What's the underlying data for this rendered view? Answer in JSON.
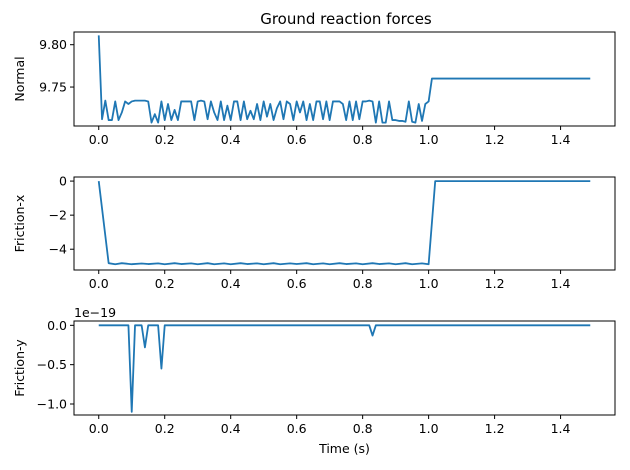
{
  "figure": {
    "title": "Ground reaction forces",
    "line_color": "#1f77b4"
  },
  "chart_data": [
    {
      "type": "line",
      "title": "Ground reaction forces",
      "ylabel": "Normal",
      "xlabel": "",
      "xlim": [
        -0.075,
        1.565
      ],
      "ylim": [
        9.704,
        9.815
      ],
      "x_ticks": [
        0.0,
        0.2,
        0.4,
        0.6,
        0.8,
        1.0,
        1.2,
        1.4
      ],
      "x_tick_labels": [
        "0.0",
        "0.2",
        "0.4",
        "0.6",
        "0.8",
        "1.0",
        "1.2",
        "1.4"
      ],
      "y_ticks": [
        9.75,
        9.8
      ],
      "y_tick_labels": [
        "9.75",
        "9.80"
      ],
      "offset_label": "",
      "grid": false,
      "series": [
        {
          "x": [
            0.0,
            0.01,
            0.02,
            0.03,
            0.04,
            0.05,
            0.06,
            0.07,
            0.08,
            0.09,
            0.1,
            0.11,
            0.12,
            0.13,
            0.14,
            0.15,
            0.16,
            0.17,
            0.18,
            0.19,
            0.2,
            0.21,
            0.22,
            0.23,
            0.24,
            0.25,
            0.26,
            0.27,
            0.28,
            0.29,
            0.3,
            0.31,
            0.32,
            0.33,
            0.34,
            0.35,
            0.36,
            0.37,
            0.38,
            0.39,
            0.4,
            0.41,
            0.42,
            0.43,
            0.44,
            0.45,
            0.46,
            0.47,
            0.48,
            0.49,
            0.5,
            0.51,
            0.52,
            0.53,
            0.54,
            0.55,
            0.56,
            0.57,
            0.58,
            0.59,
            0.6,
            0.61,
            0.62,
            0.63,
            0.64,
            0.65,
            0.66,
            0.67,
            0.68,
            0.69,
            0.7,
            0.71,
            0.72,
            0.73,
            0.74,
            0.75,
            0.76,
            0.77,
            0.78,
            0.79,
            0.8,
            0.81,
            0.82,
            0.83,
            0.84,
            0.85,
            0.86,
            0.87,
            0.88,
            0.89,
            0.9,
            0.91,
            0.92,
            0.93,
            0.94,
            0.95,
            0.96,
            0.97,
            0.98,
            0.99,
            1.0,
            1.01,
            1.02,
            1.03,
            1.1,
            1.2,
            1.3,
            1.4,
            1.49
          ],
          "y": [
            9.811,
            9.712,
            9.734,
            9.711,
            9.711,
            9.733,
            9.711,
            9.72,
            9.733,
            9.73,
            9.733,
            9.734,
            9.734,
            9.734,
            9.734,
            9.733,
            9.708,
            9.718,
            9.708,
            9.733,
            9.711,
            9.73,
            9.711,
            9.723,
            9.711,
            9.733,
            9.733,
            9.733,
            9.733,
            9.711,
            9.733,
            9.734,
            9.733,
            9.712,
            9.733,
            9.72,
            9.711,
            9.733,
            9.711,
            9.728,
            9.711,
            9.733,
            9.733,
            9.711,
            9.733,
            9.712,
            9.722,
            9.712,
            9.73,
            9.711,
            9.733,
            9.715,
            9.73,
            9.711,
            9.725,
            9.733,
            9.712,
            9.733,
            9.73,
            9.711,
            9.733,
            9.72,
            9.733,
            9.711,
            9.73,
            9.711,
            9.733,
            9.733,
            9.712,
            9.733,
            9.711,
            9.733,
            9.733,
            9.733,
            9.73,
            9.711,
            9.733,
            9.711,
            9.733,
            9.712,
            9.733,
            9.733,
            9.734,
            9.733,
            9.708,
            9.733,
            9.708,
            9.708,
            9.733,
            9.711,
            9.711,
            9.71,
            9.71,
            9.709,
            9.733,
            9.709,
            9.708,
            9.73,
            9.71,
            9.73,
            9.733,
            9.76,
            9.76,
            9.76,
            9.76,
            9.76,
            9.76,
            9.76,
            9.76
          ]
        }
      ]
    },
    {
      "type": "line",
      "title": "",
      "ylabel": "Friction-x",
      "xlabel": "",
      "xlim": [
        -0.075,
        1.565
      ],
      "ylim": [
        -5.22,
        0.24
      ],
      "x_ticks": [
        0.0,
        0.2,
        0.4,
        0.6,
        0.8,
        1.0,
        1.2,
        1.4
      ],
      "x_tick_labels": [
        "0.0",
        "0.2",
        "0.4",
        "0.6",
        "0.8",
        "1.0",
        "1.2",
        "1.4"
      ],
      "y_ticks": [
        -4,
        -2,
        0
      ],
      "y_tick_labels": [
        "−4",
        "−2",
        "0"
      ],
      "offset_label": "",
      "grid": false,
      "series": [
        {
          "x": [
            0.0,
            0.03,
            0.05,
            0.07,
            0.1,
            0.13,
            0.15,
            0.18,
            0.2,
            0.23,
            0.25,
            0.28,
            0.3,
            0.33,
            0.35,
            0.38,
            0.4,
            0.43,
            0.45,
            0.48,
            0.5,
            0.53,
            0.55,
            0.58,
            0.6,
            0.63,
            0.65,
            0.68,
            0.7,
            0.73,
            0.75,
            0.78,
            0.8,
            0.83,
            0.85,
            0.88,
            0.9,
            0.93,
            0.95,
            0.98,
            1.0,
            1.02,
            1.1,
            1.2,
            1.3,
            1.4,
            1.49
          ],
          "y": [
            0.0,
            -4.82,
            -4.88,
            -4.82,
            -4.88,
            -4.84,
            -4.87,
            -4.83,
            -4.88,
            -4.82,
            -4.87,
            -4.83,
            -4.88,
            -4.82,
            -4.88,
            -4.83,
            -4.88,
            -4.82,
            -4.87,
            -4.83,
            -4.88,
            -4.82,
            -4.88,
            -4.83,
            -4.87,
            -4.82,
            -4.88,
            -4.83,
            -4.88,
            -4.82,
            -4.87,
            -4.83,
            -4.88,
            -4.82,
            -4.87,
            -4.83,
            -4.88,
            -4.82,
            -4.88,
            -4.83,
            -4.88,
            0.0,
            0.0,
            0.0,
            0.0,
            0.0,
            0.0
          ]
        }
      ]
    },
    {
      "type": "line",
      "title": "",
      "ylabel": "Friction-y",
      "xlabel": "Time (s)",
      "xlim": [
        -0.075,
        1.565
      ],
      "ylim": [
        -1.14,
        0.055
      ],
      "x_ticks": [
        0.0,
        0.2,
        0.4,
        0.6,
        0.8,
        1.0,
        1.2,
        1.4
      ],
      "x_tick_labels": [
        "0.0",
        "0.2",
        "0.4",
        "0.6",
        "0.8",
        "1.0",
        "1.2",
        "1.4"
      ],
      "y_ticks": [
        -1.0,
        -0.5,
        0.0
      ],
      "y_tick_labels": [
        "−1.0",
        "−0.5",
        "0.0"
      ],
      "offset_label": "1e−19",
      "grid": false,
      "series": [
        {
          "x": [
            0.0,
            0.08,
            0.09,
            0.1,
            0.11,
            0.12,
            0.13,
            0.14,
            0.15,
            0.16,
            0.17,
            0.18,
            0.19,
            0.2,
            0.82,
            0.83,
            0.84,
            1.0,
            1.49
          ],
          "y": [
            0.0,
            0.0,
            0.0,
            -1.1,
            0.0,
            0.0,
            0.0,
            -0.28,
            0.0,
            0.0,
            0.0,
            0.0,
            -0.55,
            0.0,
            0.0,
            -0.13,
            0.0,
            0.0,
            0.0
          ]
        }
      ]
    }
  ]
}
